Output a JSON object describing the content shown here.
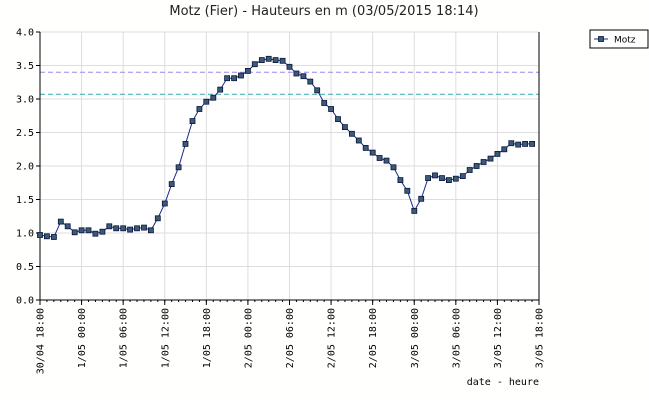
{
  "chart_data": {
    "type": "line",
    "title": "Motz (Fier) - Hauteurs en m (03/05/2015 18:14)",
    "xlabel": "date - heure",
    "ylabel": "",
    "ylim": [
      0.0,
      4.0
    ],
    "y_ticks": [
      "0.0",
      "0.5",
      "1.0",
      "1.5",
      "2.0",
      "2.5",
      "3.0",
      "3.5",
      "4.0"
    ],
    "x_ticks": [
      "30/04 18:00",
      "1/05 00:00",
      "1/05 06:00",
      "1/05 12:00",
      "1/05 18:00",
      "2/05 00:00",
      "2/05 06:00",
      "2/05 12:00",
      "2/05 18:00",
      "3/05 00:00",
      "3/05 06:00",
      "3/05 12:00",
      "3/05 18:00"
    ],
    "grid": true,
    "legend_position": "top-right",
    "reference_lines": [
      {
        "value": 3.4,
        "color": "#9988ee"
      },
      {
        "value": 3.07,
        "color": "#33aaaa"
      }
    ],
    "series": [
      {
        "name": "Motz",
        "color": "#1b2a8a",
        "marker_color": "#3d5a73",
        "x": [
          "30/04 18:00",
          "30/04 19:00",
          "30/04 20:00",
          "30/04 21:00",
          "30/04 22:00",
          "30/04 23:00",
          "1/05 00:00",
          "1/05 01:00",
          "1/05 02:00",
          "1/05 03:00",
          "1/05 04:00",
          "1/05 05:00",
          "1/05 06:00",
          "1/05 07:00",
          "1/05 08:00",
          "1/05 09:00",
          "1/05 10:00",
          "1/05 11:00",
          "1/05 12:00",
          "1/05 13:00",
          "1/05 14:00",
          "1/05 15:00",
          "1/05 16:00",
          "1/05 17:00",
          "1/05 18:00",
          "1/05 19:00",
          "1/05 20:00",
          "1/05 21:00",
          "1/05 22:00",
          "1/05 23:00",
          "2/05 00:00",
          "2/05 01:00",
          "2/05 02:00",
          "2/05 03:00",
          "2/05 04:00",
          "2/05 05:00",
          "2/05 06:00",
          "2/05 07:00",
          "2/05 08:00",
          "2/05 09:00",
          "2/05 10:00",
          "2/05 11:00",
          "2/05 12:00",
          "2/05 13:00",
          "2/05 14:00",
          "2/05 15:00",
          "2/05 16:00",
          "2/05 17:00",
          "2/05 18:00",
          "2/05 19:00",
          "2/05 20:00",
          "2/05 21:00",
          "2/05 22:00",
          "2/05 23:00",
          "3/05 00:00",
          "3/05 01:00",
          "3/05 02:00",
          "3/05 03:00",
          "3/05 04:00",
          "3/05 05:00",
          "3/05 06:00",
          "3/05 07:00",
          "3/05 08:00",
          "3/05 09:00",
          "3/05 10:00",
          "3/05 11:00",
          "3/05 12:00",
          "3/05 13:00",
          "3/05 14:00",
          "3/05 15:00",
          "3/05 16:00",
          "3/05 17:00"
        ],
        "values": [
          0.97,
          0.95,
          0.94,
          1.17,
          1.1,
          1.01,
          1.04,
          1.04,
          0.99,
          1.02,
          1.1,
          1.07,
          1.07,
          1.05,
          1.07,
          1.08,
          1.04,
          1.22,
          1.44,
          1.73,
          1.98,
          2.33,
          2.67,
          2.85,
          2.96,
          3.02,
          3.14,
          3.31,
          3.31,
          3.35,
          3.42,
          3.52,
          3.58,
          3.6,
          3.58,
          3.57,
          3.48,
          3.38,
          3.34,
          3.26,
          3.13,
          2.94,
          2.85,
          2.7,
          2.58,
          2.48,
          2.38,
          2.27,
          2.2,
          2.12,
          2.08,
          1.98,
          1.79,
          1.63,
          1.33,
          1.51,
          1.82,
          1.86,
          1.82,
          1.79,
          1.81,
          1.85,
          1.94,
          2.0,
          2.06,
          2.11,
          2.18,
          2.25,
          2.34,
          2.32,
          2.33,
          2.33
        ]
      }
    ]
  }
}
